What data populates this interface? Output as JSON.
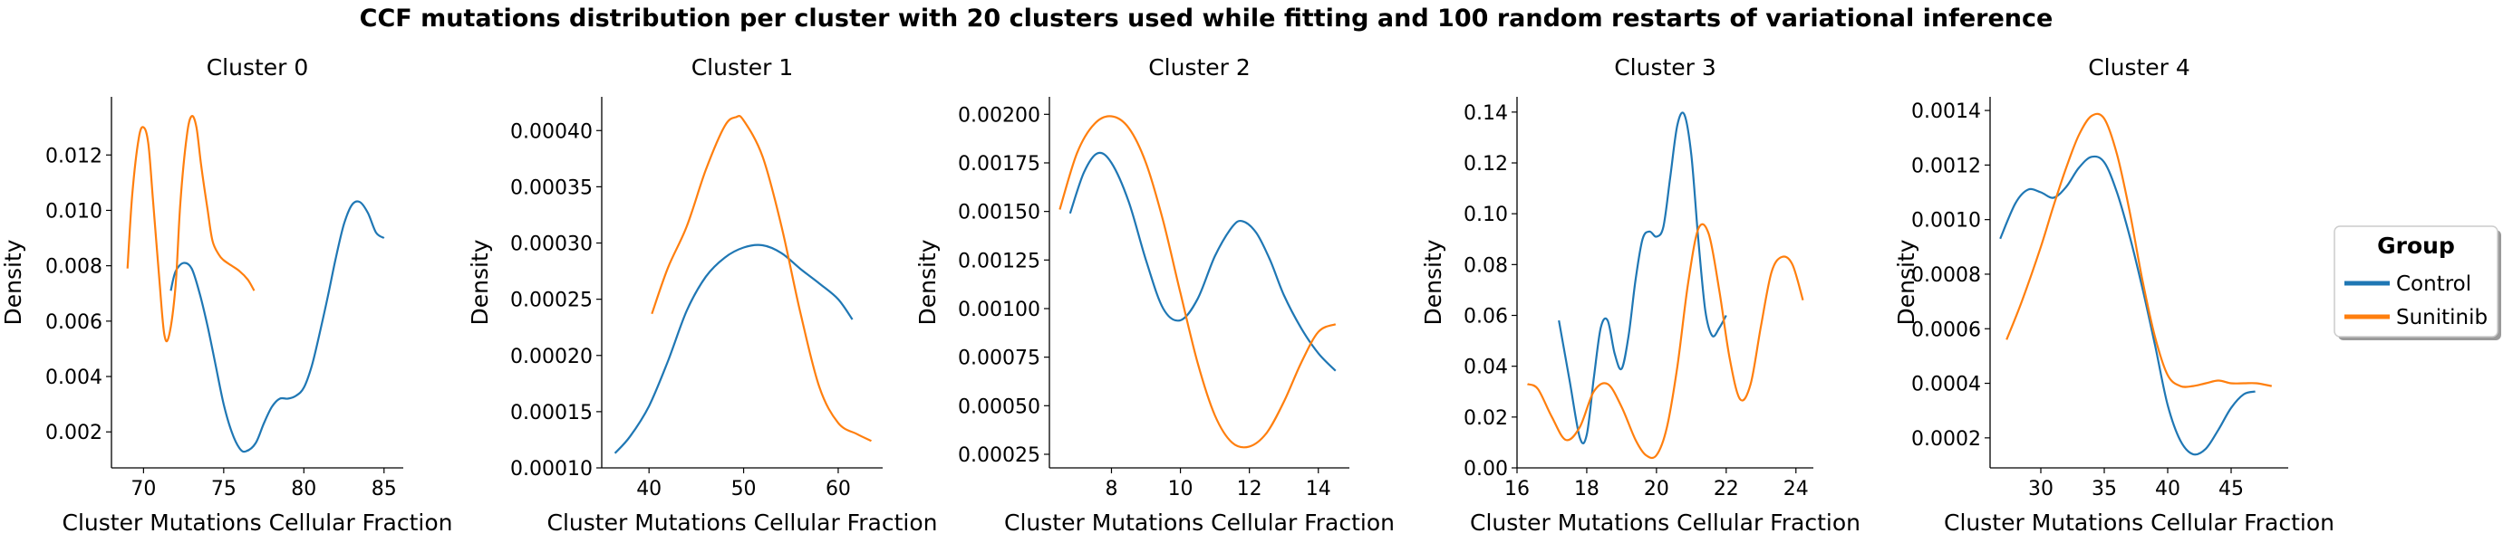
{
  "figure": {
    "title": "CCF mutations distribution per cluster with 20 clusters used while fitting and 100 random restarts of variational inference"
  },
  "legend": {
    "title": "Group",
    "placement": "right",
    "entries": [
      {
        "label": "Control",
        "color": "#1f77b4"
      },
      {
        "label": "Sunitinib",
        "color": "#ff7f0e"
      }
    ]
  },
  "chart_data": [
    {
      "type": "line",
      "title": "Cluster 0",
      "xlabel": "Cluster Mutations Cellular Fraction",
      "ylabel": "Density",
      "xlim": [
        68.0,
        86.2
      ],
      "ylim": [
        0.0007,
        0.0141
      ],
      "xticks": [
        70,
        75,
        80,
        85
      ],
      "xtick_labels": [
        "70",
        "75",
        "80",
        "85"
      ],
      "yticks": [
        0.002,
        0.004,
        0.006,
        0.008,
        0.01,
        0.012
      ],
      "ytick_labels": [
        "0.002",
        "0.004",
        "0.006",
        "0.008",
        "0.010",
        "0.012"
      ],
      "grid": false,
      "series": [
        {
          "name": "Control",
          "color": "#1f77b4",
          "x": [
            71.7,
            72.0,
            72.5,
            73.0,
            73.5,
            74.0,
            74.5,
            75.0,
            75.5,
            76.0,
            76.4,
            77.0,
            77.5,
            78.0,
            78.5,
            79.0,
            79.5,
            80.0,
            80.5,
            81.0,
            81.5,
            82.0,
            82.5,
            83.0,
            83.5,
            84.0,
            84.5,
            85.0
          ],
          "y": [
            0.0071,
            0.0078,
            0.0081,
            0.0079,
            0.007,
            0.0058,
            0.0044,
            0.003,
            0.002,
            0.0014,
            0.0013,
            0.0016,
            0.0023,
            0.0029,
            0.0032,
            0.0032,
            0.0033,
            0.0036,
            0.0044,
            0.0056,
            0.0069,
            0.0083,
            0.0095,
            0.0102,
            0.0103,
            0.0099,
            0.0092,
            0.009
          ]
        },
        {
          "name": "Sunitinib",
          "color": "#ff7f0e",
          "x": [
            69.0,
            69.3,
            69.7,
            70.0,
            70.3,
            70.6,
            71.0,
            71.3,
            71.6,
            72.0,
            72.3,
            72.7,
            73.0,
            73.3,
            73.6,
            74.0,
            74.3,
            74.7,
            75.0,
            75.5,
            76.0,
            76.5,
            76.9
          ],
          "y": [
            0.0079,
            0.0106,
            0.0126,
            0.013,
            0.0124,
            0.0103,
            0.0074,
            0.0055,
            0.0055,
            0.0073,
            0.0103,
            0.0127,
            0.0134,
            0.013,
            0.0116,
            0.01,
            0.0089,
            0.0084,
            0.0082,
            0.008,
            0.0078,
            0.0075,
            0.0071
          ]
        }
      ]
    },
    {
      "type": "line",
      "title": "Cluster 1",
      "xlabel": "Cluster Mutations Cellular Fraction",
      "ylabel": "Density",
      "xlim": [
        35.0,
        64.7
      ],
      "ylim": [
        0.0001,
        0.00043
      ],
      "xticks": [
        40,
        50,
        60
      ],
      "xtick_labels": [
        "40",
        "50",
        "60"
      ],
      "yticks": [
        0.0001,
        0.00015,
        0.0002,
        0.00025,
        0.0003,
        0.00035,
        0.0004
      ],
      "ytick_labels": [
        "0.00010",
        "0.00015",
        "0.00020",
        "0.00025",
        "0.00030",
        "0.00035",
        "0.00040"
      ],
      "grid": false,
      "series": [
        {
          "name": "Control",
          "color": "#1f77b4",
          "x": [
            36.4,
            38,
            40,
            42,
            44,
            46,
            48,
            50,
            52,
            54,
            56,
            58,
            60,
            61.5
          ],
          "y": [
            0.000113,
            0.000128,
            0.000155,
            0.000195,
            0.00024,
            0.00027,
            0.000287,
            0.000296,
            0.000298,
            0.000291,
            0.000277,
            0.000264,
            0.00025,
            0.000232
          ]
        },
        {
          "name": "Sunitinib",
          "color": "#ff7f0e",
          "x": [
            40.3,
            42,
            44,
            46,
            48,
            49.2,
            50,
            52,
            54,
            56,
            58,
            60,
            62,
            63.5
          ],
          "y": [
            0.000237,
            0.000278,
            0.000315,
            0.000365,
            0.000404,
            0.000412,
            0.000409,
            0.000377,
            0.000315,
            0.000238,
            0.000172,
            0.00014,
            0.00013,
            0.000124
          ]
        }
      ]
    },
    {
      "type": "line",
      "title": "Cluster 2",
      "xlabel": "Cluster Mutations Cellular Fraction",
      "ylabel": "Density",
      "xlim": [
        6.2,
        14.9
      ],
      "ylim": [
        0.00018,
        0.00209
      ],
      "xticks": [
        8,
        10,
        12,
        14
      ],
      "xtick_labels": [
        "8",
        "10",
        "12",
        "14"
      ],
      "yticks": [
        0.00025,
        0.0005,
        0.00075,
        0.001,
        0.00125,
        0.0015,
        0.00175,
        0.002
      ],
      "ytick_labels": [
        "0.00025",
        "0.00050",
        "0.00075",
        "0.00100",
        "0.00125",
        "0.00150",
        "0.00175",
        "0.00200"
      ],
      "grid": false,
      "series": [
        {
          "name": "Control",
          "color": "#1f77b4",
          "x": [
            6.8,
            7.2,
            7.6,
            8.0,
            8.5,
            9.0,
            9.5,
            10.0,
            10.5,
            11.0,
            11.5,
            11.8,
            12.2,
            12.6,
            13.0,
            13.5,
            14.0,
            14.5
          ],
          "y": [
            0.00149,
            0.0017,
            0.0018,
            0.00175,
            0.00155,
            0.00125,
            0.001,
            0.00094,
            0.00105,
            0.00127,
            0.00142,
            0.00145,
            0.00139,
            0.00125,
            0.00107,
            0.0009,
            0.00077,
            0.00068
          ]
        },
        {
          "name": "Sunitinib",
          "color": "#ff7f0e",
          "x": [
            6.5,
            7.0,
            7.5,
            8.0,
            8.5,
            9.0,
            9.5,
            10.0,
            10.5,
            11.0,
            11.5,
            12.0,
            12.5,
            13.0,
            13.5,
            14.0,
            14.5
          ],
          "y": [
            0.00151,
            0.0018,
            0.00195,
            0.00199,
            0.00193,
            0.00175,
            0.00145,
            0.00108,
            0.00072,
            0.00045,
            0.00031,
            0.00029,
            0.00036,
            0.00052,
            0.00072,
            0.00088,
            0.00092
          ]
        }
      ]
    },
    {
      "type": "line",
      "title": "Cluster 3",
      "xlabel": "Cluster Mutations Cellular Fraction",
      "ylabel": "Density",
      "xlim": [
        16.0,
        24.5
      ],
      "ylim": [
        0.0,
        0.146
      ],
      "xticks": [
        16,
        18,
        20,
        22,
        24
      ],
      "xtick_labels": [
        "16",
        "18",
        "20",
        "22",
        "24"
      ],
      "yticks": [
        0.0,
        0.02,
        0.04,
        0.06,
        0.08,
        0.1,
        0.12,
        0.14
      ],
      "ytick_labels": [
        "0.00",
        "0.02",
        "0.04",
        "0.06",
        "0.08",
        "0.10",
        "0.12",
        "0.14"
      ],
      "grid": false,
      "series": [
        {
          "name": "Control",
          "color": "#1f77b4",
          "x": [
            17.2,
            17.5,
            17.8,
            18.0,
            18.2,
            18.4,
            18.6,
            18.8,
            19.0,
            19.2,
            19.4,
            19.6,
            19.8,
            20.0,
            20.2,
            20.4,
            20.6,
            20.8,
            21.0,
            21.2,
            21.4,
            21.6,
            21.8,
            22.0
          ],
          "y": [
            0.058,
            0.035,
            0.012,
            0.013,
            0.035,
            0.055,
            0.058,
            0.045,
            0.039,
            0.052,
            0.074,
            0.09,
            0.093,
            0.091,
            0.095,
            0.115,
            0.135,
            0.139,
            0.123,
            0.09,
            0.062,
            0.052,
            0.055,
            0.06
          ]
        },
        {
          "name": "Sunitinib",
          "color": "#ff7f0e",
          "x": [
            16.3,
            16.6,
            17.0,
            17.4,
            17.8,
            18.2,
            18.6,
            19.0,
            19.4,
            19.7,
            20.0,
            20.3,
            20.6,
            20.9,
            21.2,
            21.5,
            21.8,
            22.1,
            22.4,
            22.7,
            23.0,
            23.3,
            23.6,
            23.9,
            24.2
          ],
          "y": [
            0.033,
            0.031,
            0.02,
            0.011,
            0.016,
            0.03,
            0.033,
            0.024,
            0.011,
            0.005,
            0.005,
            0.016,
            0.04,
            0.072,
            0.094,
            0.092,
            0.07,
            0.043,
            0.027,
            0.033,
            0.056,
            0.077,
            0.083,
            0.08,
            0.066
          ]
        }
      ]
    },
    {
      "type": "line",
      "title": "Cluster 4",
      "xlabel": "Cluster Mutations Cellular Fraction",
      "ylabel": "Density",
      "xlim": [
        26.0,
        49.5
      ],
      "ylim": [
        9e-05,
        0.00145
      ],
      "xticks": [
        30,
        35,
        40,
        45
      ],
      "xtick_labels": [
        "30",
        "35",
        "40",
        "45"
      ],
      "yticks": [
        0.0002,
        0.0004,
        0.0006,
        0.0008,
        0.001,
        0.0012,
        0.0014
      ],
      "ytick_labels": [
        "0.0002",
        "0.0004",
        "0.0006",
        "0.0008",
        "0.0010",
        "0.0012",
        "0.0014"
      ],
      "grid": false,
      "series": [
        {
          "name": "Control",
          "color": "#1f77b4",
          "x": [
            26.8,
            28,
            29,
            30,
            31,
            32,
            33,
            34,
            35,
            36,
            37,
            38,
            39,
            40,
            41,
            42,
            43,
            44,
            45,
            46,
            46.9
          ],
          "y": [
            0.00093,
            0.00106,
            0.00111,
            0.0011,
            0.00108,
            0.00112,
            0.00119,
            0.00123,
            0.00121,
            0.0011,
            0.00094,
            0.00075,
            0.00054,
            0.00032,
            0.00019,
            0.00014,
            0.00016,
            0.00023,
            0.00031,
            0.00036,
            0.00037
          ]
        },
        {
          "name": "Sunitinib",
          "color": "#ff7f0e",
          "x": [
            27.3,
            28.5,
            30,
            31,
            32,
            33,
            34,
            35,
            36,
            37,
            38,
            39,
            40,
            41,
            42,
            43,
            44,
            45,
            46,
            47,
            48.2
          ],
          "y": [
            0.00056,
            0.0007,
            0.0009,
            0.00105,
            0.00119,
            0.00131,
            0.00138,
            0.00137,
            0.00124,
            0.00103,
            0.00078,
            0.00057,
            0.00043,
            0.00039,
            0.00039,
            0.0004,
            0.00041,
            0.0004,
            0.0004,
            0.0004,
            0.00039
          ]
        }
      ]
    }
  ]
}
